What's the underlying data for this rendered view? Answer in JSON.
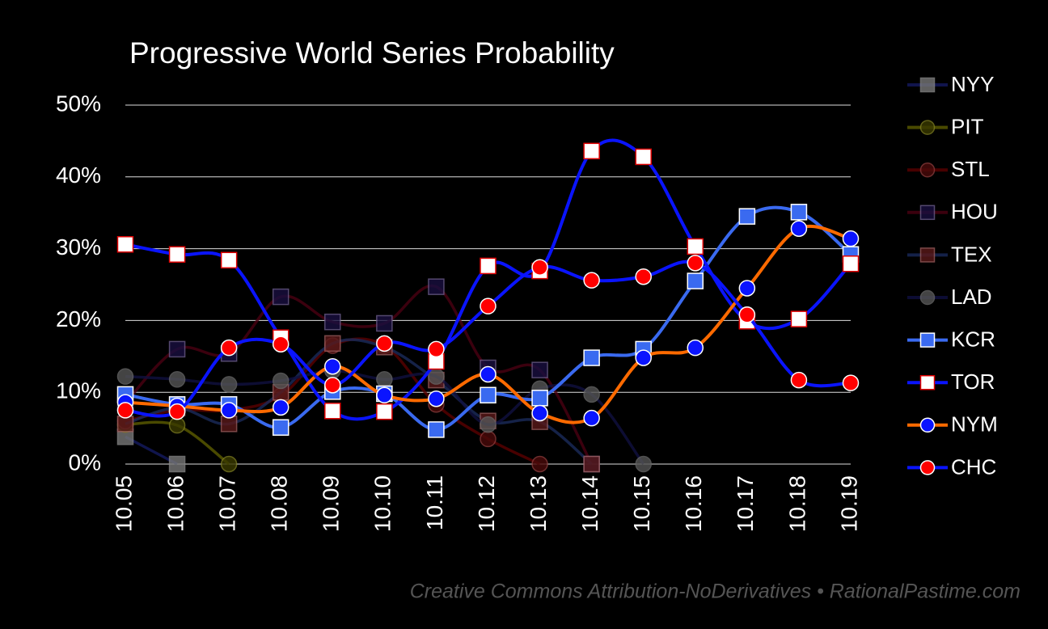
{
  "chart_data": {
    "type": "line",
    "title": "Progressive World Series Probability",
    "credit": "Creative Commons Attribution-NoDerivatives • RationalPastime.com",
    "categories": [
      "10.05",
      "10.06",
      "10.07",
      "10.08",
      "10.09",
      "10.10",
      "10.11",
      "10.12",
      "10.13",
      "10.14",
      "10.15",
      "10.16",
      "10.17",
      "10.18",
      "10.19"
    ],
    "ylim": [
      0,
      50
    ],
    "yticks": [
      {
        "value": 0,
        "label": "0%"
      },
      {
        "value": 10,
        "label": "10%"
      },
      {
        "value": 20,
        "label": "20%"
      },
      {
        "value": 30,
        "label": "30%"
      },
      {
        "value": 40,
        "label": "40%"
      },
      {
        "value": 50,
        "label": "50%"
      }
    ],
    "grid": true,
    "smooth": true,
    "legend": "right",
    "series": [
      {
        "name": "NYY",
        "color": "#141a60",
        "marker": "square",
        "marker_color": "#777777",
        "marker_edge": "#888888",
        "alpha": 0.8,
        "values": [
          3.8,
          0,
          null,
          null,
          null,
          null,
          null,
          null,
          null,
          null,
          null,
          null,
          null,
          null,
          null
        ]
      },
      {
        "name": "PIT",
        "color": "#5c5c00",
        "marker": "circle",
        "marker_color": "#3a3a00",
        "marker_edge": "#7a7a20",
        "alpha": 0.8,
        "values": [
          5.5,
          5.4,
          0,
          null,
          null,
          null,
          null,
          null,
          null,
          null,
          null,
          null,
          null,
          null,
          null
        ]
      },
      {
        "name": "STL",
        "color": "#5a0000",
        "marker": "circle",
        "marker_color": "#4a0a0a",
        "marker_edge": "#8a3a3a",
        "alpha": 0.8,
        "values": [
          6,
          7.5,
          7.5,
          9.5,
          16.5,
          16.5,
          8.3,
          3.5,
          0,
          null,
          null,
          null,
          null,
          null,
          null
        ]
      },
      {
        "name": "HOU",
        "color": "#4a0012",
        "marker": "square",
        "marker_color": "#1a1040",
        "marker_edge": "#6a5a8a",
        "alpha": 0.8,
        "values": [
          8.5,
          16,
          15.4,
          23.3,
          19.8,
          19.6,
          24.7,
          13.4,
          13.1,
          0,
          null,
          null,
          null,
          null,
          null
        ]
      },
      {
        "name": "TEX",
        "color": "#1a2a5a",
        "marker": "square",
        "marker_color": "#5a1a1a",
        "marker_edge": "#9a5a5a",
        "alpha": 0.8,
        "values": [
          5.6,
          7.8,
          5.6,
          10,
          16.8,
          16.3,
          11.7,
          6,
          5.9,
          0,
          null,
          null,
          null,
          null,
          null
        ]
      },
      {
        "name": "LAD",
        "color": "#101040",
        "marker": "circle",
        "marker_color": "#555555",
        "marker_edge": "#666666",
        "alpha": 0.8,
        "values": [
          12.2,
          11.8,
          11.1,
          11.6,
          13,
          11.8,
          12.2,
          5.5,
          10.5,
          9.7,
          0,
          null,
          null,
          null,
          null
        ]
      },
      {
        "name": "KCR",
        "color": "#3a6af0",
        "marker": "square",
        "marker_color": "#3a6af0",
        "marker_edge": "#ffffff",
        "alpha": 1,
        "values": [
          9.7,
          8.3,
          8.3,
          5.1,
          10.1,
          9.8,
          4.8,
          9.6,
          9.2,
          14.8,
          16,
          25.5,
          34.5,
          35.1,
          29.2
        ]
      },
      {
        "name": "TOR",
        "color": "#0a14ff",
        "marker": "square",
        "marker_color": "#ffffff",
        "marker_edge": "#e00000",
        "alpha": 1,
        "values": [
          30.6,
          29.2,
          28.4,
          17.6,
          7.4,
          7.3,
          14.3,
          27.6,
          26.9,
          43.6,
          42.8,
          30.3,
          19.9,
          20.2,
          27.9
        ]
      },
      {
        "name": "NYM",
        "color": "#ff6a00",
        "marker": "circle",
        "marker_color": "#0a14ff",
        "marker_edge": "#ffffff",
        "alpha": 1,
        "values": [
          8.6,
          8.1,
          7.5,
          7.9,
          13.6,
          9.6,
          9.1,
          12.5,
          7.1,
          6.4,
          14.8,
          16.2,
          24.5,
          32.8,
          31.4
        ]
      },
      {
        "name": "CHC",
        "color": "#0a14ff",
        "marker": "circle",
        "marker_color": "#ff0000",
        "marker_edge": "#ffffff",
        "alpha": 1,
        "values": [
          7.5,
          7.3,
          16.2,
          16.7,
          11,
          16.8,
          16,
          22,
          27.4,
          25.6,
          26.1,
          28,
          20.8,
          11.7,
          11.3
        ]
      }
    ]
  }
}
